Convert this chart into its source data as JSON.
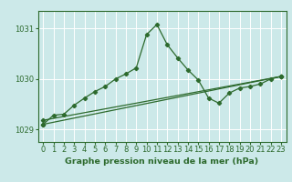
{
  "xlabel": "Graphe pression niveau de la mer (hPa)",
  "bg_color": "#cce9e9",
  "line_color": "#2d6a2d",
  "grid_color": "#ffffff",
  "ylim": [
    1028.75,
    1031.35
  ],
  "xlim": [
    -0.5,
    23.5
  ],
  "yticks": [
    1029,
    1030,
    1031
  ],
  "xticks": [
    0,
    1,
    2,
    3,
    4,
    5,
    6,
    7,
    8,
    9,
    10,
    11,
    12,
    13,
    14,
    15,
    16,
    17,
    18,
    19,
    20,
    21,
    22,
    23
  ],
  "pressure_data": [
    1029.1,
    1029.28,
    1029.3,
    1029.48,
    1029.62,
    1029.75,
    1029.85,
    1030.0,
    1030.1,
    1030.22,
    1030.88,
    1031.08,
    1030.68,
    1030.42,
    1030.18,
    1029.98,
    1029.62,
    1029.52,
    1029.72,
    1029.82,
    1029.85,
    1029.9,
    1030.0,
    1030.05
  ],
  "trend1_x": [
    0,
    23
  ],
  "trend1_y": [
    1029.1,
    1030.05
  ],
  "trend2_x": [
    0,
    23
  ],
  "trend2_y": [
    1029.18,
    1030.05
  ],
  "marker": "D",
  "marker_size": 2.2,
  "line_width": 0.9,
  "font_color": "#2d6a2d",
  "xlabel_fontsize": 6.8,
  "tick_fontsize": 6.0
}
